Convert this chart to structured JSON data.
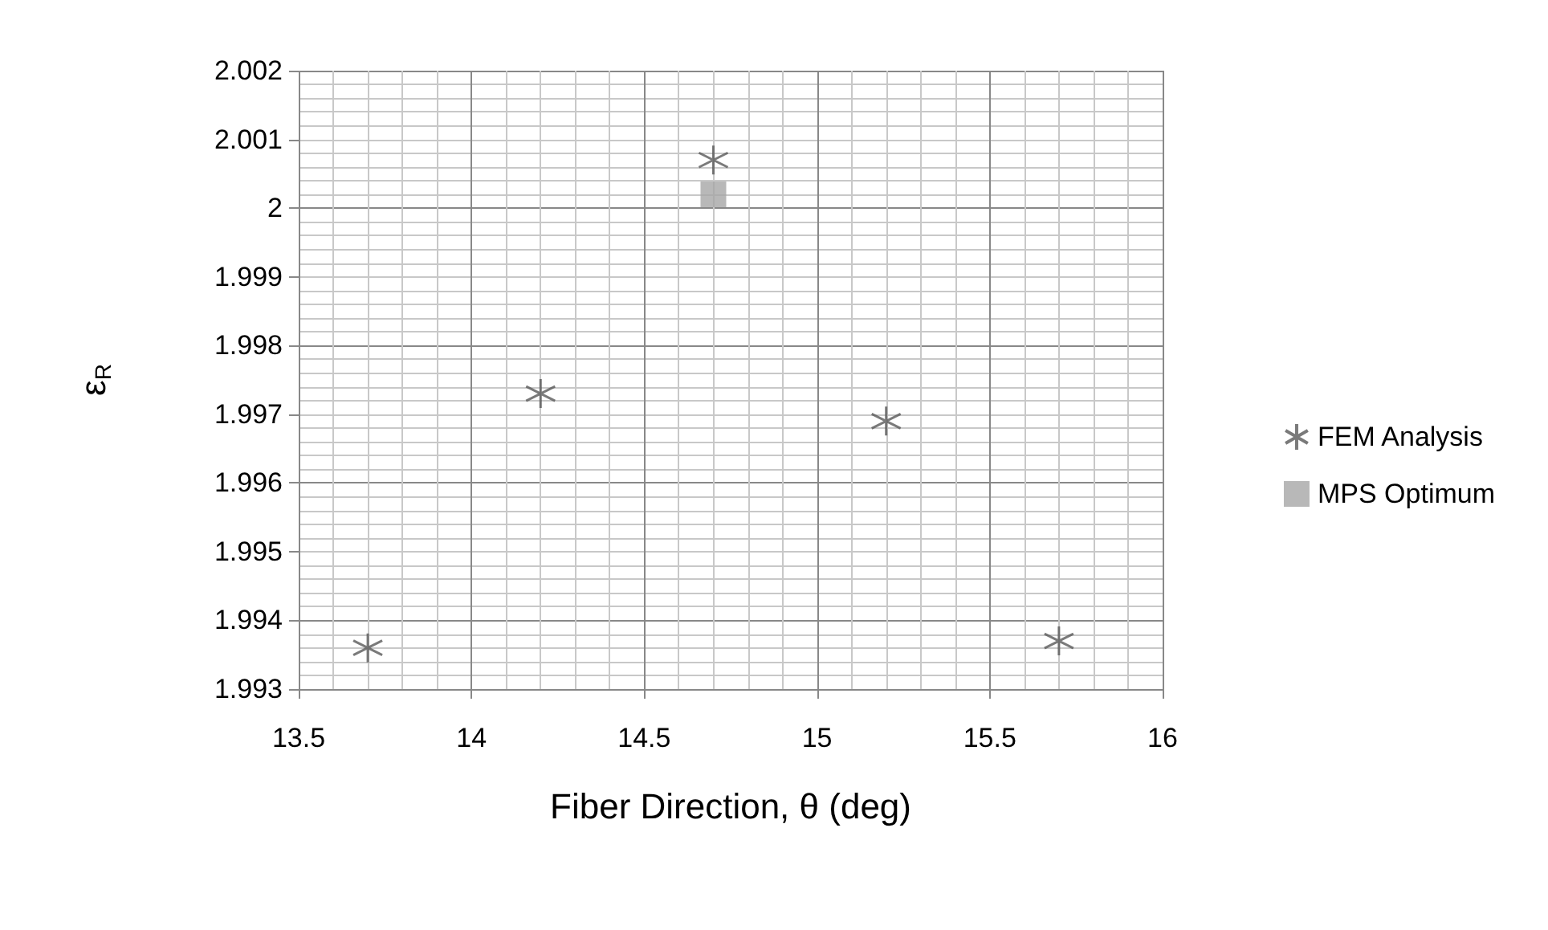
{
  "chart_data": {
    "type": "scatter",
    "xlabel": "Fiber Direction, θ (deg)",
    "ylabel": "ε$_{R}$",
    "xlim": [
      13.5,
      16
    ],
    "xticks": [
      13.5,
      14,
      14.5,
      15,
      15.5,
      16
    ],
    "ylim": [
      1.993,
      2.002
    ],
    "yticks": [
      1.993,
      1.994,
      1.995,
      1.996,
      1.997,
      1.998,
      1.999,
      2,
      2.001,
      2.002
    ],
    "grid": true,
    "legend": "right",
    "series": [
      {
        "name": "FEM Analysis",
        "color": "#595959",
        "marker": "cross",
        "x": [
          13.7,
          14.2,
          14.7,
          15.2,
          15.7
        ],
        "values": [
          1.9936,
          1.9973,
          2.0007,
          1.9969,
          1.9937
        ]
      },
      {
        "name": "MPS Optimum",
        "color": "#a6a6a6",
        "marker": "square",
        "x": [
          14.7
        ],
        "values": [
          2.0002
        ]
      }
    ]
  }
}
